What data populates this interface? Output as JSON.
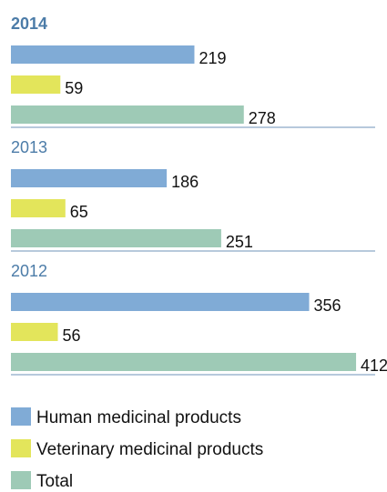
{
  "chart_data": {
    "type": "bar",
    "orientation": "horizontal",
    "categories": [
      "2014",
      "2013",
      "2012"
    ],
    "series": [
      {
        "name": "Human medicinal products",
        "color": "#80abd6",
        "values": [
          219,
          186,
          356
        ]
      },
      {
        "name": "Veterinary medicinal products",
        "color": "#e3e55b",
        "values": [
          59,
          65,
          56
        ]
      },
      {
        "name": "Total",
        "color": "#9ecab6",
        "values": [
          278,
          251,
          412
        ]
      }
    ]
  }
}
